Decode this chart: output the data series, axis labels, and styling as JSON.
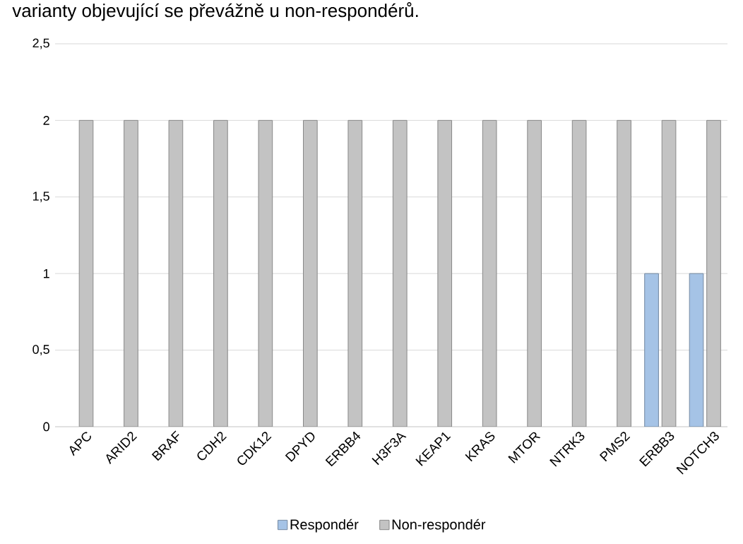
{
  "chart_data": {
    "type": "bar",
    "title": "varianty objevující se převážně u non-respondérů.",
    "categories": [
      "APC",
      "ARID2",
      "BRAF",
      "CDH2",
      "CDK12",
      "DPYD",
      "ERBB4",
      "H3F3A",
      "KEAP1",
      "KRAS",
      "MTOR",
      "NTRK3",
      "PMS2",
      "ERBB3",
      "NOTCH3"
    ],
    "series": [
      {
        "name": "Respondér",
        "color": "#a5c3e6",
        "values": [
          null,
          null,
          null,
          null,
          null,
          null,
          null,
          null,
          null,
          null,
          null,
          null,
          null,
          1,
          1
        ]
      },
      {
        "name": "Non-respondér",
        "color": "#c3c3c3",
        "values": [
          2,
          2,
          2,
          2,
          2,
          2,
          2,
          2,
          2,
          2,
          2,
          2,
          2,
          2,
          2
        ]
      }
    ],
    "ylim": [
      0,
      2.5
    ],
    "yticks": [
      0,
      {
        "value": 0.5,
        "label": "0,5"
      },
      1,
      {
        "value": 1.5,
        "label": "1,5"
      },
      2,
      {
        "value": 2.5,
        "label": "2,5"
      }
    ],
    "grid": "y",
    "legend": "bottom"
  }
}
